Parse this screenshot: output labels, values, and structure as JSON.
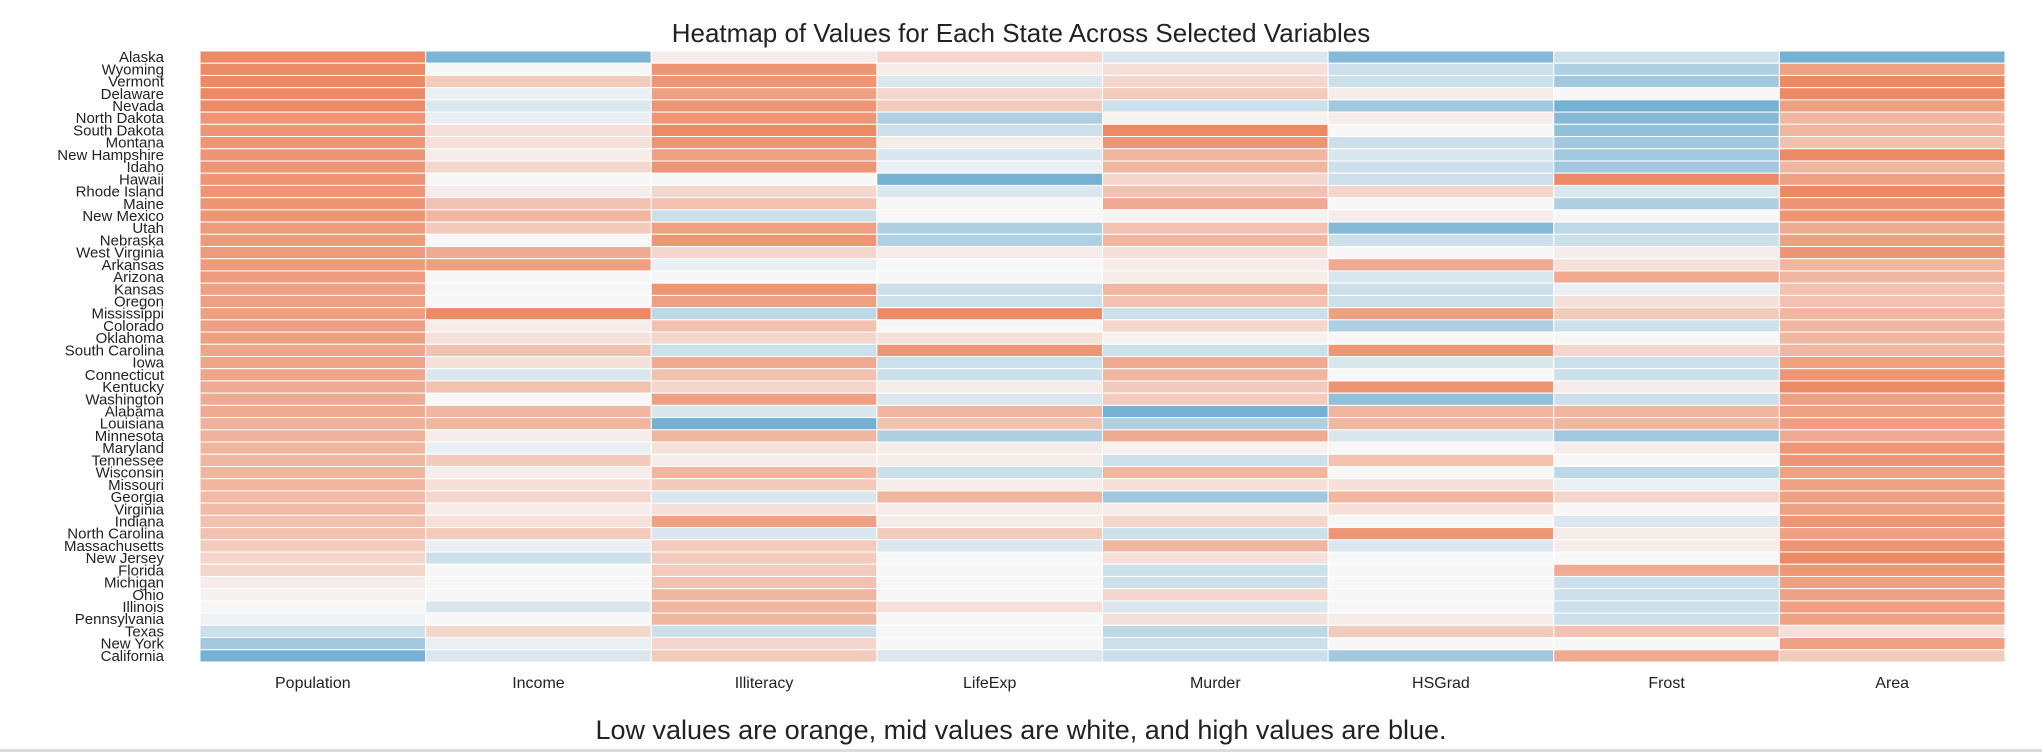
{
  "chart_data": {
    "type": "heatmap",
    "title": "Heatmap of Values for Each State Across Selected Variables",
    "caption": "Low values are orange, mid values are white, and high values are blue.",
    "columns": [
      "Population",
      "Income",
      "Illiteracy",
      "LifeExp",
      "Murder",
      "HSGrad",
      "Frost",
      "Area"
    ],
    "rows": [
      "Alaska",
      "Wyoming",
      "Vermont",
      "Delaware",
      "Nevada",
      "North Dakota",
      "South Dakota",
      "Montana",
      "New Hampshire",
      "Idaho",
      "Hawaii",
      "Rhode Island",
      "Maine",
      "New Mexico",
      "Utah",
      "Nebraska",
      "West Virginia",
      "Arkansas",
      "Arizona",
      "Kansas",
      "Oregon",
      "Mississippi",
      "Colorado",
      "Oklahoma",
      "South Carolina",
      "Iowa",
      "Connecticut",
      "Kentucky",
      "Washington",
      "Alabama",
      "Louisiana",
      "Minnesota",
      "Maryland",
      "Tennessee",
      "Wisconsin",
      "Missouri",
      "Georgia",
      "Virginia",
      "Indiana",
      "North Carolina",
      "Massachusetts",
      "New Jersey",
      "Florida",
      "Michigan",
      "Ohio",
      "Illinois",
      "Pennsylvania",
      "Texas",
      "New York",
      "California"
    ],
    "values": [
      [
        -1.0,
        0.85,
        -0.1,
        -0.3,
        0.2,
        0.8,
        0.3,
        0.9
      ],
      [
        -1.0,
        0.0,
        -0.9,
        -0.1,
        -0.2,
        0.3,
        0.5,
        -0.8
      ],
      [
        -1.0,
        -0.4,
        -0.9,
        0.2,
        -0.3,
        0.3,
        0.6,
        -1.0
      ],
      [
        -1.0,
        0.1,
        -0.8,
        -0.3,
        -0.4,
        -0.1,
        0.0,
        -1.0
      ],
      [
        -1.0,
        0.2,
        -0.9,
        -0.4,
        0.3,
        0.6,
        0.9,
        -0.8
      ],
      [
        -0.9,
        0.1,
        -0.9,
        0.5,
        -0.05,
        -0.1,
        0.8,
        -0.6
      ],
      [
        -0.9,
        -0.2,
        -1.0,
        0.3,
        -1.0,
        0.0,
        0.7,
        -0.6
      ],
      [
        -0.9,
        -0.2,
        -0.9,
        -0.1,
        -0.9,
        0.3,
        0.6,
        -0.5
      ],
      [
        -0.9,
        -0.1,
        -0.8,
        0.2,
        -0.6,
        0.2,
        0.6,
        -1.0
      ],
      [
        -0.9,
        -0.3,
        -0.9,
        0.1,
        -0.6,
        0.3,
        0.6,
        -0.6
      ],
      [
        -0.9,
        0.0,
        0.0,
        0.9,
        -0.3,
        0.3,
        -1.0,
        -0.8
      ],
      [
        -0.9,
        -0.1,
        -0.3,
        0.2,
        -0.5,
        -0.3,
        0.2,
        -1.0
      ],
      [
        -0.9,
        -0.5,
        -0.5,
        0.0,
        -0.7,
        0.0,
        0.5,
        -0.9
      ],
      [
        -0.9,
        -0.6,
        0.3,
        0.0,
        -0.05,
        -0.1,
        0.0,
        -0.9
      ],
      [
        -0.85,
        -0.4,
        -0.8,
        0.5,
        -0.5,
        0.8,
        0.4,
        -0.7
      ],
      [
        -0.85,
        0.0,
        -0.9,
        0.5,
        -0.6,
        0.3,
        0.3,
        -0.8
      ],
      [
        -0.85,
        -0.7,
        -0.3,
        -0.1,
        -0.2,
        0.0,
        -0.1,
        -0.9
      ],
      [
        -0.85,
        -0.8,
        0.1,
        0.0,
        -0.1,
        -0.7,
        -0.2,
        -0.6
      ],
      [
        -0.85,
        0.0,
        0.0,
        0.0,
        -0.1,
        0.2,
        -0.7,
        -0.6
      ],
      [
        -0.8,
        0.0,
        -0.9,
        0.3,
        -0.6,
        0.3,
        0.1,
        -0.5
      ],
      [
        -0.8,
        0.0,
        -0.8,
        0.3,
        -0.5,
        0.3,
        -0.2,
        -0.5
      ],
      [
        -0.8,
        -1.0,
        0.4,
        -1.0,
        0.3,
        -0.8,
        -0.4,
        -0.6
      ],
      [
        -0.8,
        -0.1,
        -0.5,
        0.0,
        -0.3,
        0.5,
        0.3,
        -0.6
      ],
      [
        -0.8,
        -0.2,
        -0.3,
        -0.2,
        -0.05,
        0.0,
        0.0,
        -0.6
      ],
      [
        -0.75,
        -0.5,
        0.3,
        -0.9,
        0.3,
        -0.9,
        -0.3,
        -0.6
      ],
      [
        -0.75,
        -0.2,
        -0.7,
        0.3,
        -0.7,
        0.2,
        0.3,
        -0.8
      ],
      [
        -0.75,
        0.2,
        -0.5,
        0.3,
        -0.6,
        0.0,
        0.3,
        -0.9
      ],
      [
        -0.7,
        -0.5,
        -0.3,
        -0.1,
        -0.4,
        -0.9,
        -0.1,
        -1.0
      ],
      [
        -0.7,
        0.0,
        -0.8,
        0.2,
        -0.4,
        0.7,
        0.3,
        -0.8
      ],
      [
        -0.7,
        -0.6,
        0.2,
        -0.6,
        0.9,
        -0.6,
        -0.6,
        -0.8
      ],
      [
        -0.65,
        -0.6,
        0.9,
        -0.5,
        0.5,
        -0.6,
        -0.6,
        -0.8
      ],
      [
        -0.65,
        -0.1,
        -0.6,
        0.5,
        -0.7,
        0.2,
        0.6,
        -0.7
      ],
      [
        -0.6,
        0.1,
        -0.2,
        -0.1,
        -0.05,
        0.0,
        -0.1,
        -0.9
      ],
      [
        -0.6,
        -0.4,
        -0.1,
        -0.1,
        0.3,
        -0.5,
        0.0,
        -0.9
      ],
      [
        -0.6,
        -0.1,
        -0.6,
        0.3,
        -0.6,
        0.0,
        0.4,
        -0.8
      ],
      [
        -0.6,
        -0.2,
        -0.4,
        -0.1,
        -0.2,
        -0.2,
        0.1,
        -0.8
      ],
      [
        -0.55,
        -0.3,
        0.2,
        -0.6,
        0.6,
        -0.6,
        -0.3,
        -0.8
      ],
      [
        -0.55,
        -0.1,
        -0.2,
        -0.1,
        -0.1,
        -0.2,
        0.0,
        -0.8
      ],
      [
        -0.5,
        -0.2,
        -0.8,
        -0.1,
        -0.3,
        0.0,
        0.2,
        -0.9
      ],
      [
        -0.5,
        -0.4,
        0.2,
        -0.4,
        0.3,
        -0.9,
        -0.1,
        -0.8
      ],
      [
        -0.4,
        0.1,
        -0.4,
        0.2,
        -0.6,
        0.2,
        -0.1,
        -0.9
      ],
      [
        -0.3,
        0.3,
        -0.4,
        0.0,
        -0.2,
        0.0,
        0.0,
        -1.0
      ],
      [
        -0.3,
        0.0,
        -0.4,
        0.0,
        0.3,
        0.0,
        -0.7,
        -0.9
      ],
      [
        -0.1,
        0.0,
        -0.5,
        0.0,
        0.3,
        0.0,
        0.3,
        -0.8
      ],
      [
        -0.05,
        0.0,
        -0.6,
        0.0,
        -0.3,
        0.0,
        0.3,
        -0.8
      ],
      [
        0.0,
        0.2,
        -0.6,
        -0.2,
        0.2,
        0.0,
        0.3,
        -0.8
      ],
      [
        0.05,
        0.0,
        -0.6,
        0.0,
        -0.2,
        -0.1,
        0.3,
        -0.8
      ],
      [
        0.3,
        -0.3,
        0.3,
        0.0,
        0.4,
        -0.4,
        -0.5,
        -0.2
      ],
      [
        0.6,
        0.1,
        -0.3,
        0.0,
        0.3,
        0.0,
        0.0,
        -0.8
      ],
      [
        0.9,
        0.2,
        -0.4,
        0.2,
        0.3,
        0.6,
        -0.7,
        -0.4
      ]
    ],
    "colors": {
      "low": "#ec8a66",
      "mid": "#f7f7f7",
      "high": "#67a9cf"
    },
    "grid": false,
    "legend": "none"
  }
}
